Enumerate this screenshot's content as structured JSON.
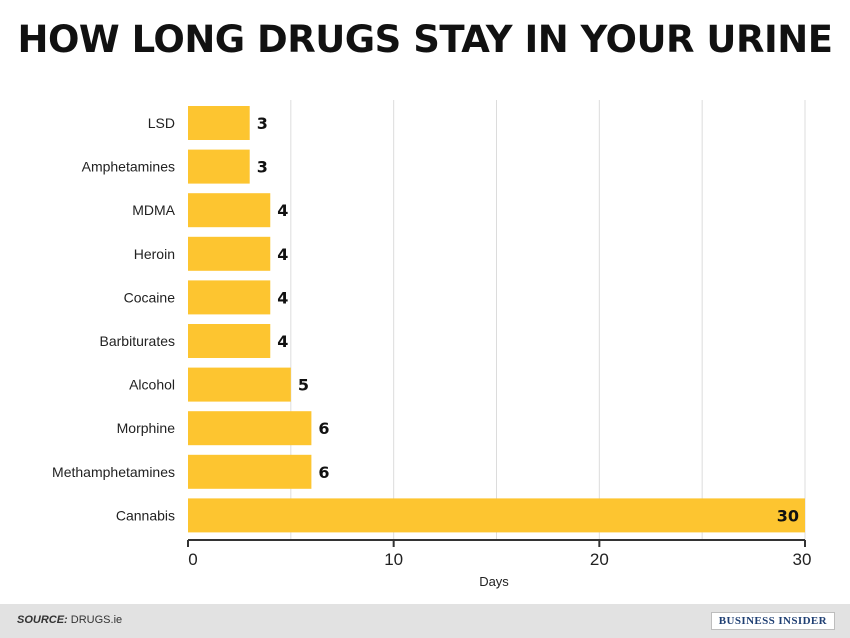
{
  "title": "HOW LONG DRUGS STAY IN YOUR URINE",
  "chart_data": {
    "type": "bar",
    "orientation": "horizontal",
    "categories": [
      "LSD",
      "Amphetamines",
      "MDMA",
      "Heroin",
      "Cocaine",
      "Barbiturates",
      "Alcohol",
      "Morphine",
      "Methamphetamines",
      "Cannabis"
    ],
    "values": [
      3,
      3,
      4,
      4,
      4,
      4,
      5,
      6,
      6,
      30
    ],
    "xlabel": "Days",
    "ylabel": "",
    "xlim": [
      0,
      30
    ],
    "xticks": [
      0,
      10,
      20,
      30
    ],
    "grid": true,
    "bar_color": "#fdc530",
    "grid_color": "#dcdcdc"
  },
  "footer": {
    "source_label": "SOURCE:",
    "source_value": "DRUGS.ie",
    "brand": "BUSINESS INSIDER"
  }
}
